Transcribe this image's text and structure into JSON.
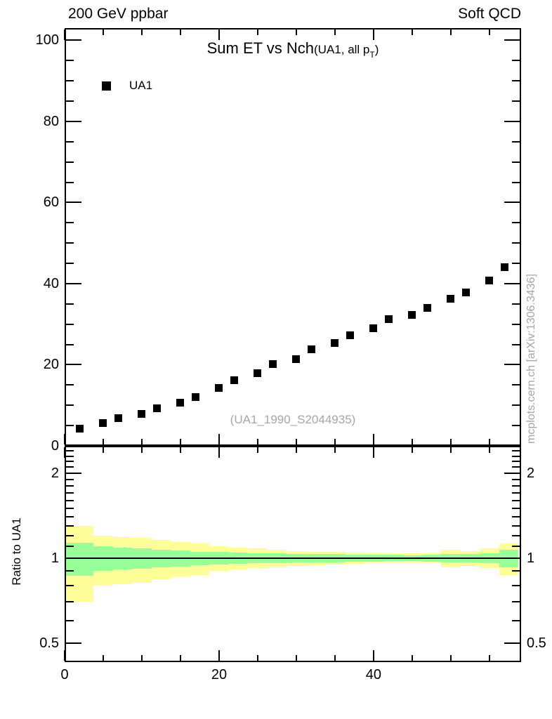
{
  "header": {
    "left": "200 GeV ppbar",
    "right": "Soft QCD"
  },
  "plot": {
    "title_main": "Sum ET vs Nch",
    "title_paren_prefix": "(UA1, all p",
    "title_sub": "T",
    "title_paren_suffix": ")",
    "watermark": "(UA1_1990_S2044935)",
    "side_note": "mcplots.cern.ch [arXiv:1306.3436]"
  },
  "legend": {
    "items": [
      {
        "label": "UA1",
        "marker": "filled-square",
        "color": "#000000"
      }
    ]
  },
  "ratio_panel": {
    "ylabel": "Ratio to UA1"
  },
  "colors": {
    "marker": "#000000",
    "band_outer": "#ffff99",
    "band_inner": "#99ff99",
    "gray_text": "#a6a6a6",
    "frame": "#000000"
  },
  "chart_data": [
    {
      "type": "scatter",
      "panel": "main",
      "title": "Sum ET vs Nch (UA1, all pT)",
      "xlabel": "",
      "ylabel": "",
      "xlim": [
        0,
        59.1
      ],
      "ylim": [
        0,
        103
      ],
      "grid": false,
      "x_minor_step": 5,
      "x_major_ticks": [
        {
          "v": 0,
          "label": "0"
        },
        {
          "v": 20,
          "label": "20"
        },
        {
          "v": 40,
          "label": "40"
        }
      ],
      "y_minor_step": 5,
      "y_major_ticks": [
        {
          "v": 0,
          "label": "0"
        },
        {
          "v": 20,
          "label": "20"
        },
        {
          "v": 40,
          "label": "40"
        },
        {
          "v": 60,
          "label": "60"
        },
        {
          "v": 80,
          "label": "80"
        },
        {
          "v": 100,
          "label": "100"
        }
      ],
      "series": [
        {
          "name": "UA1",
          "marker": "square",
          "color": "#000000",
          "x": [
            2,
            5,
            7,
            10,
            12,
            15,
            17,
            20,
            22,
            25,
            27,
            30,
            32,
            35,
            37,
            40,
            42,
            45,
            47,
            50,
            52,
            55,
            57
          ],
          "y": [
            4.3,
            5.7,
            6.9,
            7.8,
            9.2,
            10.6,
            12.1,
            14.2,
            16.1,
            18.0,
            20.1,
            21.3,
            23.8,
            25.4,
            27.3,
            29.0,
            31.3,
            32.2,
            34.1,
            36.2,
            37.9,
            40.8,
            44.0
          ]
        }
      ]
    },
    {
      "type": "band-steps",
      "panel": "ratio",
      "ylabel": "Ratio to UA1",
      "yscale": "log",
      "xlim": [
        0,
        59.1
      ],
      "ylim": [
        0.428,
        2.5
      ],
      "reference_line": 1,
      "x_minor_step": 5,
      "x_major_ticks": [
        {
          "v": 0,
          "label": "0"
        },
        {
          "v": 20,
          "label": "20"
        },
        {
          "v": 40,
          "label": "40"
        }
      ],
      "y_labeled_ticks": [
        {
          "v": 2,
          "label": "2"
        },
        {
          "v": 1,
          "label": "1"
        },
        {
          "v": 0.5,
          "label": "0.5"
        }
      ],
      "y_minor_ticks": [
        2.4,
        2.3,
        2.2,
        2.1,
        1.9,
        1.8,
        1.7,
        1.6,
        1.5,
        1.4,
        1.3,
        1.2,
        1.1,
        0.9,
        0.8,
        0.7,
        0.6
      ],
      "bands": {
        "description": "uncertainty bands around ratio=1, symmetric half-widths per bin",
        "bin_edges": [
          0.2,
          3.75,
          6.25,
          8.75,
          11.25,
          13.75,
          16.25,
          18.75,
          21.25,
          23.75,
          26.25,
          28.75,
          31.25,
          33.75,
          36.25,
          38.75,
          41.25,
          43.75,
          46.25,
          48.75,
          51.25,
          53.75,
          56.25,
          58.75
        ],
        "outer_half_width": [
          0.3,
          0.2,
          0.19,
          0.18,
          0.16,
          0.14,
          0.13,
          0.1,
          0.09,
          0.08,
          0.07,
          0.06,
          0.055,
          0.05,
          0.045,
          0.042,
          0.04,
          0.038,
          0.04,
          0.073,
          0.06,
          0.08,
          0.13
        ],
        "inner_half_width": [
          0.135,
          0.1,
          0.09,
          0.085,
          0.07,
          0.065,
          0.055,
          0.05,
          0.045,
          0.042,
          0.04,
          0.036,
          0.034,
          0.032,
          0.03,
          0.028,
          0.026,
          0.025,
          0.028,
          0.033,
          0.033,
          0.04,
          0.07
        ]
      }
    }
  ]
}
